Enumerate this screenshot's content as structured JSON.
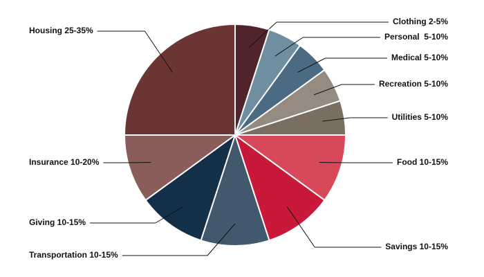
{
  "chart_data": {
    "type": "pie",
    "categories": [
      "Clothing 2-5%",
      "Personal  5-10%",
      "Medical 5-10%",
      "Recreation 5-10%",
      "Utilities 5-10%",
      "Food 10-15%",
      "Savings 10-15%",
      "Transportation 10-15%",
      "Giving 10-15%",
      "Insurance 10-20%",
      "Housing 25-35%"
    ],
    "values": [
      5,
      5,
      5,
      5,
      5,
      10,
      10,
      10,
      10,
      10,
      25
    ],
    "colors": [
      "#50242a",
      "#6f8fa1",
      "#4b6b82",
      "#958b81",
      "#7a6e62",
      "#d6485a",
      "#c8193a",
      "#41586d",
      "#142f48",
      "#8a5d5b",
      "#6b3533"
    ]
  }
}
